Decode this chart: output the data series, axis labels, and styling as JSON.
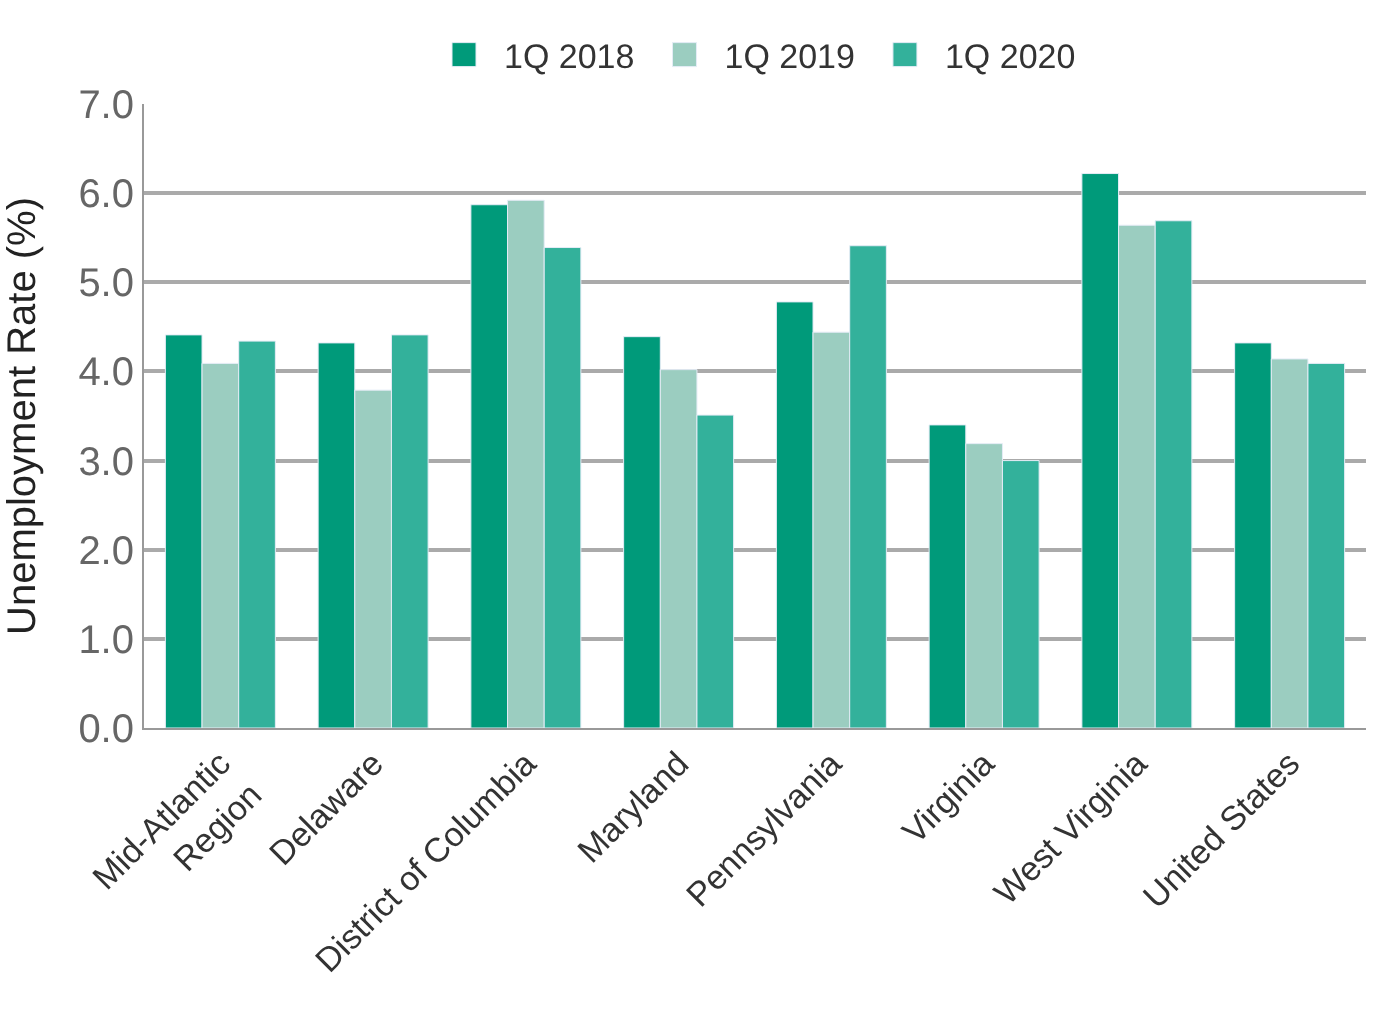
{
  "chart_data": {
    "type": "bar",
    "ylabel": "Unemployment Rate (%)",
    "categories": [
      "Mid-Atlantic\nRegion",
      "Delaware",
      "District of Columbia",
      "Maryland",
      "Pennsylvania",
      "Virginia",
      "West Virginia",
      "United States"
    ],
    "series": [
      {
        "name": "1Q 2018",
        "color": "#009a7a",
        "values": [
          4.41,
          4.32,
          5.87,
          4.39,
          4.78,
          3.4,
          6.22,
          4.32
        ]
      },
      {
        "name": "1Q 2019",
        "color": "#9bcdc0",
        "values": [
          4.09,
          3.79,
          5.92,
          4.02,
          4.44,
          3.19,
          5.64,
          4.14
        ]
      },
      {
        "name": "1Q 2020",
        "color": "#33b19b",
        "values": [
          4.34,
          4.41,
          5.39,
          3.51,
          5.41,
          3.0,
          5.69,
          4.09
        ]
      }
    ],
    "ylim": [
      0,
      7
    ],
    "yticks": [
      {
        "value": 0,
        "label": "0.0"
      },
      {
        "value": 1,
        "label": "1.0"
      },
      {
        "value": 2,
        "label": "2.0"
      },
      {
        "value": 3,
        "label": "3.0"
      },
      {
        "value": 4,
        "label": "4.0"
      },
      {
        "value": 5,
        "label": "5.0"
      },
      {
        "value": 6,
        "label": "6.0"
      },
      {
        "value": 7,
        "label": "7.0"
      }
    ],
    "grid": "y",
    "legend": "top"
  }
}
